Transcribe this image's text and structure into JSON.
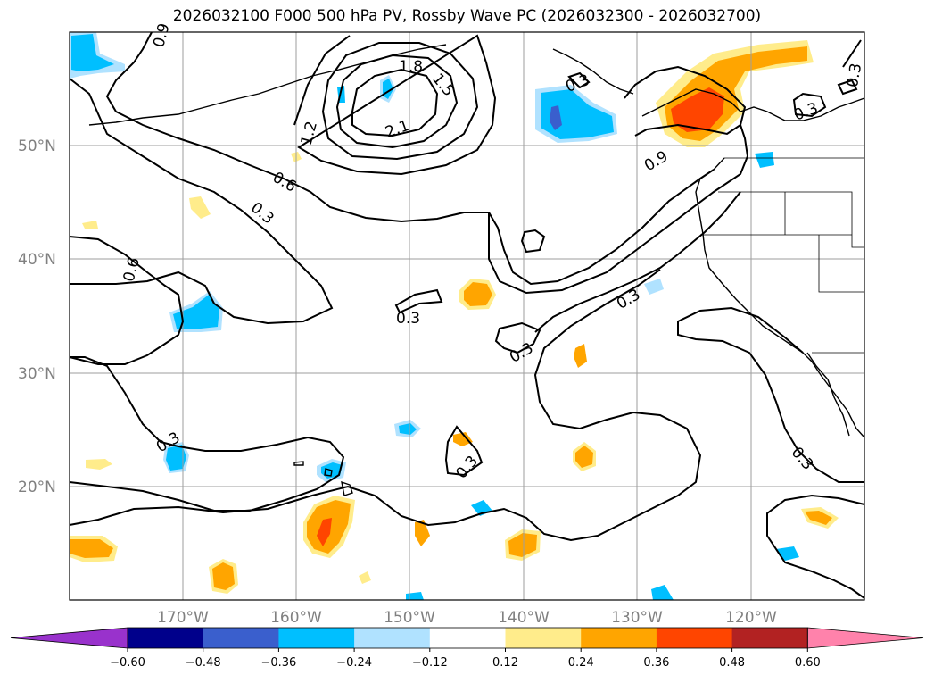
{
  "title": "2026032100 F000 500 hPa PV, Rossby Wave PC (2026032300 - 2026032700)",
  "lat_labels": [
    "50°N",
    "40°N",
    "30°N",
    "20°N"
  ],
  "lon_labels": [
    "170°W",
    "160°W",
    "150°W",
    "140°W",
    "130°W",
    "120°W"
  ],
  "contour_labels": [
    "1.8",
    "1.5",
    "2.1",
    "1.2",
    "0.6",
    "0.3",
    "0.6",
    "0.3",
    "0.3",
    "0.3",
    "0.9",
    "0.3",
    "0.3",
    "0.3",
    "0.3",
    "0.3",
    "0.3",
    "0.9"
  ],
  "colorbar": {
    "ticks": [
      "−0.60",
      "−0.48",
      "−0.36",
      "−0.24",
      "−0.12",
      "0.12",
      "0.24",
      "0.36",
      "0.48",
      "0.60"
    ],
    "colors": [
      "#9932cc",
      "#00008b",
      "#3a5fcd",
      "#00bfff",
      "#b0e2ff",
      "#ffffff",
      "#ffec8b",
      "#ffa500",
      "#ff4500",
      "#b22222",
      "#ff82ab"
    ]
  }
}
